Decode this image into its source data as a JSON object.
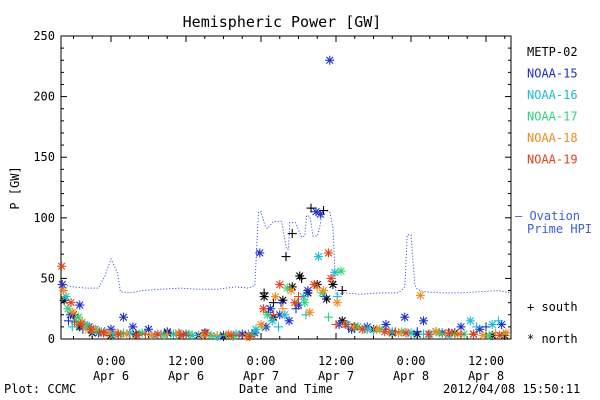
{
  "chart_data": {
    "type": "scatter",
    "title": "Hemispheric Power [GW]",
    "ylabel": "P [GW]",
    "xlabel": "Date and Time",
    "ylim": [
      0,
      250
    ],
    "xlim": [
      -8,
      64
    ],
    "yticks": [
      0,
      50,
      100,
      150,
      200,
      250
    ],
    "xticks": [
      {
        "x": 0,
        "time": "0:00",
        "date": "Apr 6"
      },
      {
        "x": 12,
        "time": "12:00",
        "date": "Apr 6"
      },
      {
        "x": 24,
        "time": "0:00",
        "date": "Apr 7"
      },
      {
        "x": 36,
        "time": "12:00",
        "date": "Apr 7"
      },
      {
        "x": 48,
        "time": "0:00",
        "date": "Apr 8"
      },
      {
        "x": 60,
        "time": "12:00",
        "date": "Apr 8"
      }
    ],
    "legend": [
      {
        "name": "METP-02",
        "color": "#000000"
      },
      {
        "name": "NOAA-15",
        "color": "#1f2fc4"
      },
      {
        "name": "NOAA-16",
        "color": "#19bcd6"
      },
      {
        "name": "NOAA-17",
        "color": "#33d17a"
      },
      {
        "name": "NOAA-18",
        "color": "#f08b1f"
      },
      {
        "name": "NOAA-19",
        "color": "#e2421c"
      }
    ],
    "ovation_label": [
      "— Ovation",
      "Prime HPI"
    ],
    "ovation_color": "#3b5fd8",
    "ovation": {
      "x": [
        -8,
        -6,
        -4,
        -2,
        -1,
        0,
        1,
        1.5,
        3,
        5,
        8,
        11,
        14,
        17,
        20,
        22,
        23,
        23.6,
        24,
        24.6,
        25,
        26,
        26.5,
        27.3,
        27.6,
        28.1,
        28.4,
        28.6,
        29.5,
        30.5,
        31,
        31.3,
        31.8,
        32,
        32.3,
        33,
        33.5,
        33.8,
        34.4,
        35,
        35.5,
        36,
        36.6,
        37.2,
        40,
        43,
        46,
        47,
        47.4,
        48,
        48.6,
        49,
        50,
        53,
        56,
        59,
        62,
        64
      ],
      "y": [
        45,
        43,
        42,
        42,
        52,
        66,
        55,
        39,
        38,
        40,
        41,
        42,
        41,
        41,
        43,
        42,
        44,
        105,
        105,
        94,
        91,
        97,
        97,
        97,
        88,
        74,
        74,
        96,
        96,
        84,
        85,
        102,
        101,
        96,
        85,
        85,
        95,
        106,
        106,
        105,
        92,
        37,
        37,
        38,
        37,
        38,
        38,
        43,
        86,
        86,
        45,
        41,
        39,
        38,
        38,
        39,
        40,
        38
      ]
    },
    "north_label": "* north",
    "south_label": "+ south",
    "series": [
      {
        "name": "METP-02",
        "color": "#000000",
        "hemisphere": "south",
        "x": [
          24.5,
          26,
          28,
          29,
          30.5,
          32,
          34,
          37
        ],
        "y": [
          38,
          30,
          68,
          87,
          50,
          108,
          106,
          40
        ]
      },
      {
        "name": "METP-02",
        "color": "#000000",
        "hemisphere": "north",
        "x": [
          -7.5,
          -6,
          -5,
          -3,
          0,
          4,
          9,
          14,
          18,
          22,
          24.5,
          26,
          27.5,
          29,
          30.2,
          31.5,
          33,
          34.5,
          35.5,
          37,
          39,
          42,
          45,
          49,
          52,
          55,
          58,
          61,
          63
        ],
        "y": [
          32,
          20,
          10,
          5,
          3,
          4,
          5,
          3,
          2,
          3,
          35,
          18,
          32,
          43,
          52,
          38,
          45,
          33,
          45,
          15,
          10,
          8,
          5,
          4,
          6,
          5,
          4,
          3,
          3
        ]
      },
      {
        "name": "NOAA-15",
        "color": "#1f2fc4",
        "hemisphere": "north",
        "x": [
          -7.8,
          -6.5,
          -5,
          -3.5,
          -2,
          0,
          2,
          3.5,
          6,
          9,
          12,
          15,
          18,
          21,
          23,
          23.8,
          24.8,
          25.5,
          27,
          28.5,
          30,
          31.5,
          32.8,
          33.5,
          35,
          36.5,
          38.5,
          41,
          44,
          47,
          50,
          53,
          56,
          59,
          62.5
        ],
        "y": [
          45,
          20,
          28,
          10,
          5,
          8,
          18,
          10,
          8,
          6,
          4,
          5,
          3,
          4,
          5,
          71,
          10,
          25,
          20,
          15,
          28,
          40,
          105,
          103,
          230,
          12,
          8,
          10,
          12,
          18,
          15,
          5,
          10,
          8,
          12
        ]
      },
      {
        "name": "NOAA-15",
        "color": "#1f2fc4",
        "hemisphere": "south",
        "x": [
          -6.8,
          -4.5,
          -1,
          3,
          7,
          11,
          16,
          20,
          25.2,
          27.2,
          29.6,
          34.2,
          38,
          44,
          49,
          54,
          60
        ],
        "y": [
          15,
          8,
          6,
          4,
          3,
          4,
          3,
          4,
          22,
          30,
          25,
          35,
          10,
          8,
          6,
          5,
          10
        ]
      },
      {
        "name": "NOAA-16",
        "color": "#19bcd6",
        "hemisphere": "north",
        "x": [
          -7.2,
          -5.8,
          -4.2,
          -2.5,
          0.5,
          3,
          7,
          10,
          13,
          17,
          20,
          23.2,
          25.8,
          27.8,
          30.8,
          33.2,
          35.8,
          37.8,
          41,
          45,
          48,
          51,
          54,
          57.5,
          61
        ],
        "y": [
          35,
          15,
          12,
          8,
          4,
          5,
          3,
          4,
          3,
          2,
          4,
          8,
          15,
          20,
          35,
          68,
          55,
          12,
          8,
          6,
          5,
          4,
          3,
          15,
          12
        ]
      },
      {
        "name": "NOAA-16",
        "color": "#19bcd6",
        "hemisphere": "south",
        "x": [
          -6.2,
          -3,
          2,
          8,
          14,
          22,
          26.8,
          31.2,
          36.2,
          42,
          50,
          58.5,
          62
        ],
        "y": [
          10,
          6,
          5,
          4,
          3,
          4,
          10,
          20,
          35,
          6,
          4,
          10,
          15
        ]
      },
      {
        "name": "NOAA-17",
        "color": "#33d17a",
        "hemisphere": "north",
        "x": [
          -6.9,
          -5.2,
          -3.8,
          -1.5,
          1.5,
          5,
          8.5,
          12.5,
          16,
          19.5,
          22.5,
          25,
          28.2,
          31,
          33.8,
          36.8,
          39.5,
          43,
          46.5,
          52.5,
          56.5,
          60.5
        ],
        "y": [
          25,
          18,
          10,
          6,
          4,
          5,
          3,
          4,
          3,
          2,
          3,
          20,
          42,
          30,
          38,
          56,
          10,
          8,
          6,
          5,
          4,
          3
        ]
      },
      {
        "name": "NOAA-17",
        "color": "#33d17a",
        "hemisphere": "south",
        "x": [
          -5.5,
          -2.2,
          4.5,
          10.5,
          18.5,
          24.2,
          29.8,
          34.8,
          40.5,
          47.5,
          55,
          62.8
        ],
        "y": [
          12,
          7,
          4,
          3,
          3,
          10,
          30,
          18,
          8,
          5,
          4,
          4
        ]
      },
      {
        "name": "NOAA-18",
        "color": "#f08b1f",
        "hemisphere": "north",
        "x": [
          -7.6,
          -6.1,
          -4.6,
          -2.8,
          -0.5,
          2.5,
          6.5,
          10.8,
          14.8,
          18.8,
          21.8,
          24,
          26.3,
          28.8,
          31.8,
          34,
          36.2,
          38.8,
          42.5,
          46,
          49.5,
          52,
          55.5,
          59.5,
          63.2
        ],
        "y": [
          40,
          22,
          14,
          8,
          5,
          4,
          3,
          5,
          3,
          4,
          2,
          12,
          35,
          40,
          22,
          40,
          30,
          10,
          8,
          5,
          36,
          6,
          4,
          3,
          5
        ]
      },
      {
        "name": "NOAA-18",
        "color": "#f08b1f",
        "hemisphere": "south",
        "x": [
          -4,
          1,
          9,
          17,
          27.5,
          33,
          44.5,
          53.5,
          61.5
        ],
        "y": [
          8,
          5,
          4,
          3,
          25,
          42,
          6,
          4,
          5
        ]
      },
      {
        "name": "NOAA-19",
        "color": "#e2421c",
        "hemisphere": "north",
        "x": [
          -7.9,
          -6.4,
          -4.9,
          -3.2,
          -1.2,
          1.2,
          4.2,
          7.5,
          11.2,
          15.2,
          19.2,
          22.2,
          24.4,
          27,
          29.4,
          32.5,
          34.8,
          35.2,
          37.5,
          40.2,
          43.8,
          47.2,
          50.8,
          54.2,
          58,
          62.2
        ],
        "y": [
          60,
          30,
          12,
          8,
          5,
          4,
          3,
          4,
          3,
          5,
          3,
          2,
          25,
          45,
          30,
          45,
          71,
          50,
          12,
          8,
          6,
          5,
          4,
          5,
          4,
          3
        ]
      },
      {
        "name": "NOAA-19",
        "color": "#e2421c",
        "hemisphere": "south",
        "x": [
          -5.8,
          -1.8,
          5.5,
          12,
          20.5,
          26,
          30,
          36,
          45.5,
          56
        ],
        "y": [
          14,
          6,
          4,
          3,
          3,
          20,
          35,
          12,
          6,
          4
        ]
      }
    ]
  },
  "footer": {
    "plot_credit": "Plot: CCMC",
    "timestamp": "2012/04/08 15:50:11"
  }
}
